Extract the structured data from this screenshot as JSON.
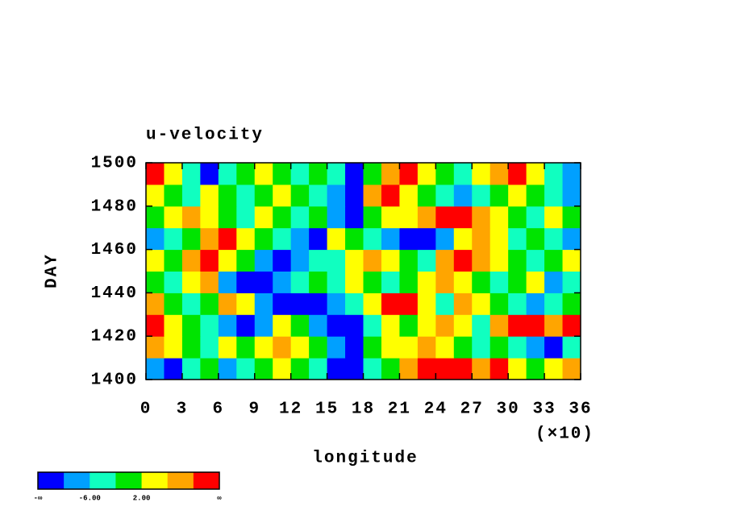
{
  "chart_data": {
    "type": "contour",
    "title": "u-velocity",
    "xlabel": "longitude",
    "ylabel": "DAY",
    "x_multiplier": "(×10)",
    "xlim": [
      0,
      360
    ],
    "ylim": [
      1400,
      1500
    ],
    "xticks": [
      {
        "value": 0,
        "label": "0"
      },
      {
        "value": 30,
        "label": "3"
      },
      {
        "value": 60,
        "label": "6"
      },
      {
        "value": 90,
        "label": "9"
      },
      {
        "value": 120,
        "label": "12"
      },
      {
        "value": 150,
        "label": "15"
      },
      {
        "value": 180,
        "label": "18"
      },
      {
        "value": 210,
        "label": "21"
      },
      {
        "value": 240,
        "label": "24"
      },
      {
        "value": 270,
        "label": "27"
      },
      {
        "value": 300,
        "label": "30"
      },
      {
        "value": 330,
        "label": "33"
      },
      {
        "value": 360,
        "label": "36"
      }
    ],
    "yticks": [
      1400,
      1420,
      1440,
      1460,
      1480,
      1500
    ],
    "x": [
      7.5,
      22.5,
      37.5,
      52.5,
      67.5,
      82.5,
      97.5,
      112.5,
      127.5,
      142.5,
      157.5,
      172.5,
      187.5,
      202.5,
      217.5,
      232.5,
      247.5,
      262.5,
      277.5,
      292.5,
      307.5,
      322.5,
      337.5,
      352.5
    ],
    "y": [
      1405,
      1415,
      1425,
      1435,
      1445,
      1455,
      1465,
      1475,
      1485,
      1495
    ],
    "z": [
      [
        -8,
        -12,
        -4,
        0,
        -8,
        -4,
        0,
        4,
        0,
        -4,
        -12,
        -12,
        -4,
        0,
        8,
        12,
        12,
        12,
        8,
        12,
        4,
        0,
        4,
        8
      ],
      [
        8,
        4,
        0,
        -4,
        4,
        0,
        4,
        8,
        4,
        0,
        -8,
        -12,
        0,
        4,
        4,
        8,
        4,
        0,
        -4,
        0,
        -4,
        -8,
        -12,
        -4
      ],
      [
        12,
        4,
        0,
        -4,
        -8,
        -12,
        -8,
        4,
        0,
        -8,
        -12,
        -12,
        -4,
        4,
        0,
        4,
        8,
        4,
        -4,
        8,
        12,
        12,
        8,
        12
      ],
      [
        8,
        0,
        -4,
        0,
        8,
        4,
        -8,
        -12,
        -12,
        -12,
        -8,
        -4,
        4,
        12,
        12,
        4,
        -4,
        8,
        4,
        0,
        -4,
        -8,
        -4,
        0
      ],
      [
        0,
        -4,
        4,
        8,
        -8,
        -12,
        -12,
        -8,
        -4,
        0,
        -4,
        4,
        0,
        -4,
        0,
        4,
        8,
        4,
        0,
        -4,
        0,
        4,
        -8,
        -4
      ],
      [
        4,
        0,
        8,
        12,
        4,
        0,
        -8,
        -12,
        -8,
        -4,
        -4,
        4,
        8,
        4,
        0,
        -4,
        8,
        12,
        8,
        4,
        0,
        -4,
        0,
        4
      ],
      [
        -8,
        -4,
        0,
        8,
        12,
        4,
        0,
        -4,
        -8,
        -12,
        4,
        0,
        -4,
        -8,
        -12,
        -12,
        -8,
        4,
        8,
        4,
        -4,
        0,
        -4,
        -8
      ],
      [
        0,
        4,
        8,
        4,
        0,
        -4,
        4,
        0,
        -4,
        0,
        -8,
        -12,
        0,
        4,
        4,
        8,
        12,
        12,
        8,
        4,
        0,
        -4,
        4,
        0
      ],
      [
        4,
        0,
        -4,
        4,
        0,
        -4,
        0,
        4,
        0,
        -4,
        -8,
        -12,
        8,
        12,
        4,
        0,
        -4,
        -8,
        -4,
        0,
        4,
        0,
        -4,
        -8
      ],
      [
        12,
        4,
        -4,
        -12,
        -4,
        0,
        4,
        0,
        -4,
        0,
        -4,
        -12,
        0,
        8,
        12,
        4,
        0,
        -4,
        4,
        8,
        12,
        4,
        -4,
        -8
      ]
    ],
    "colorbar": {
      "colors": [
        "#0000ff",
        "#00a0ff",
        "#10ffc0",
        "#00e400",
        "#ffff00",
        "#ffa500",
        "#ff0000"
      ],
      "boundaries": [
        {
          "value": null,
          "label": "-∞"
        },
        {
          "value": -10,
          "label": null
        },
        {
          "value": -6,
          "label": "-6.00"
        },
        {
          "value": -2,
          "label": null
        },
        {
          "value": 2,
          "label": "2.00"
        },
        {
          "value": 6,
          "label": null
        },
        {
          "value": 10,
          "label": null
        },
        {
          "value": null,
          "label": "∞"
        }
      ]
    }
  }
}
